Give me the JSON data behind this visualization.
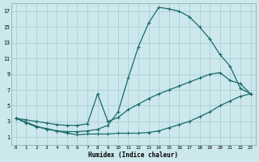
{
  "xlabel": "Humidex (Indice chaleur)",
  "bg_color": "#cce8ec",
  "grid_color": "#aacfd5",
  "line_color": "#1a6b6b",
  "xlim": [
    -0.5,
    23.5
  ],
  "ylim": [
    0,
    18
  ],
  "xticks": [
    0,
    1,
    2,
    3,
    4,
    5,
    6,
    7,
    8,
    9,
    10,
    11,
    12,
    13,
    14,
    15,
    16,
    17,
    18,
    19,
    20,
    21,
    22,
    23
  ],
  "yticks": [
    1,
    3,
    5,
    7,
    9,
    11,
    13,
    15,
    17
  ],
  "line1_x": [
    0,
    1,
    2,
    3,
    4,
    5,
    6,
    7,
    8,
    9,
    10,
    11,
    12,
    13,
    14,
    15,
    16,
    17,
    18,
    19,
    20,
    21,
    22,
    23
  ],
  "line1_y": [
    3.4,
    2.8,
    2.3,
    2.1,
    1.8,
    1.5,
    1.3,
    1.4,
    1.4,
    1.4,
    1.5,
    1.5,
    1.5,
    1.6,
    1.8,
    2.2,
    2.6,
    3.0,
    3.6,
    4.2,
    5.0,
    5.6,
    6.2,
    6.5
  ],
  "line2_x": [
    0,
    1,
    2,
    3,
    4,
    5,
    6,
    7,
    8,
    9,
    10,
    11,
    12,
    13,
    14,
    15,
    16,
    17,
    18,
    19,
    20,
    21,
    22,
    23
  ],
  "line2_y": [
    3.4,
    2.9,
    2.4,
    2.0,
    1.8,
    1.7,
    1.7,
    1.8,
    2.0,
    2.5,
    4.2,
    8.5,
    12.5,
    15.5,
    17.5,
    17.3,
    17.0,
    16.3,
    15.0,
    13.5,
    11.5,
    10.0,
    7.2,
    6.5
  ],
  "line3_x": [
    0,
    1,
    2,
    3,
    4,
    5,
    6,
    7,
    8,
    9,
    10,
    11,
    12,
    13,
    14,
    15,
    16,
    17,
    18,
    19,
    20,
    21,
    22,
    23
  ],
  "line3_y": [
    3.4,
    3.2,
    3.0,
    2.8,
    2.6,
    2.5,
    2.5,
    2.7,
    6.5,
    3.0,
    3.5,
    4.5,
    5.2,
    5.9,
    6.5,
    7.0,
    7.5,
    8.0,
    8.5,
    9.0,
    9.2,
    8.2,
    7.8,
    6.5
  ]
}
